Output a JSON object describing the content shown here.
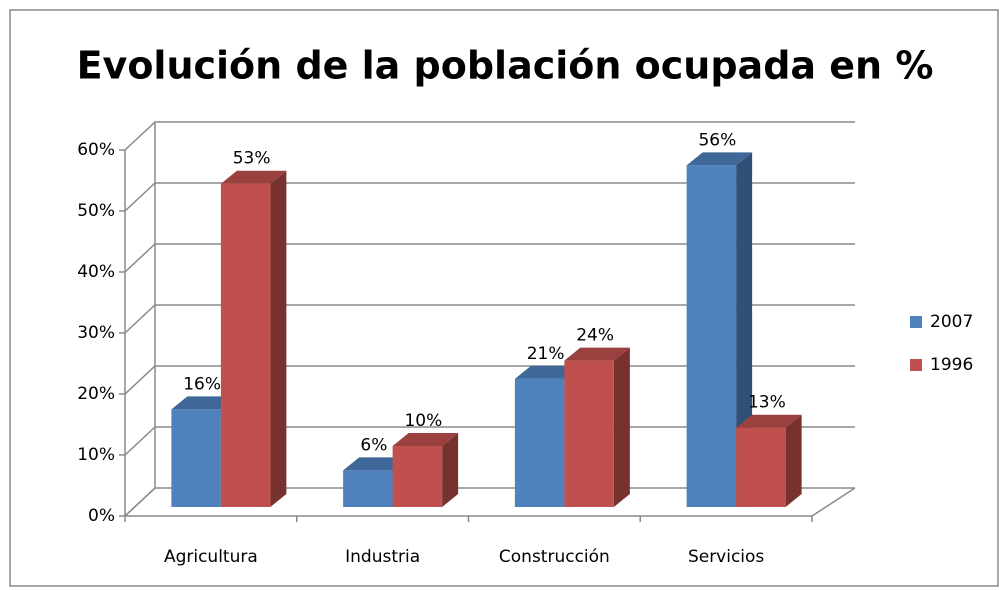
{
  "chart_data": {
    "type": "bar",
    "title": "Evolución de la población ocupada en %",
    "categories": [
      "Agricultura",
      "Industria",
      "Construcción",
      "Servicios"
    ],
    "series": [
      {
        "name": "2007",
        "color": "#4f81bd",
        "values": [
          16,
          6,
          21,
          56
        ],
        "value_labels": [
          "16%",
          "6%",
          "21%",
          "56%"
        ]
      },
      {
        "name": "1996",
        "color": "#c0504d",
        "values": [
          53,
          10,
          24,
          13
        ],
        "value_labels": [
          "53%",
          "10%",
          "24%",
          "13%"
        ]
      }
    ],
    "ylim": [
      0,
      60
    ],
    "yticks": [
      {
        "value": 0,
        "label": "0%"
      },
      {
        "value": 10,
        "label": "10%"
      },
      {
        "value": 20,
        "label": "20%"
      },
      {
        "value": 30,
        "label": "30%"
      },
      {
        "value": 40,
        "label": "40%"
      },
      {
        "value": 50,
        "label": "50%"
      },
      {
        "value": 60,
        "label": "60%"
      }
    ],
    "grid": true,
    "legend": "right"
  }
}
